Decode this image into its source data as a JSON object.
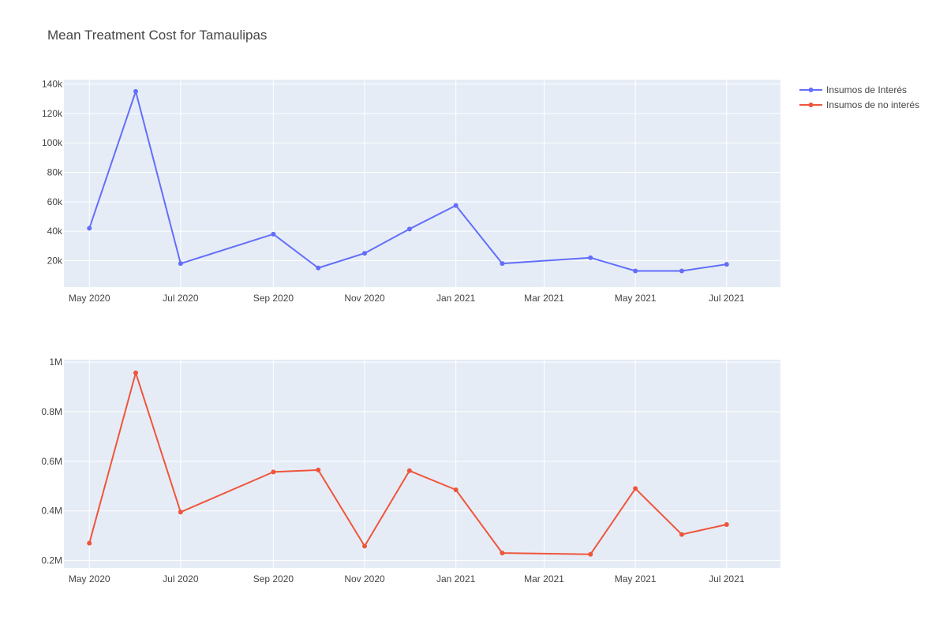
{
  "chart_data": {
    "type": "line",
    "title": "Mean Treatment Cost for Tamaulipas",
    "legend_position": "top-right",
    "grid": true,
    "x": [
      "2020-05-01",
      "2020-06-01",
      "2020-07-01",
      "2020-09-01",
      "2020-10-01",
      "2020-11-01",
      "2020-12-01",
      "2021-01-01",
      "2021-02-01",
      "2021-04-01",
      "2021-05-01",
      "2021-06-01",
      "2021-07-01"
    ],
    "x_tick_labels": [
      "May 2020",
      "Jul 2020",
      "Sep 2020",
      "Nov 2020",
      "Jan 2021",
      "Mar 2021",
      "May 2021",
      "Jul 2021"
    ],
    "x_tick_dates": [
      "2020-05-01",
      "2020-07-01",
      "2020-09-01",
      "2020-11-01",
      "2021-01-01",
      "2021-03-01",
      "2021-05-01",
      "2021-07-01"
    ],
    "x_range": [
      "2020-04-14",
      "2021-08-06"
    ],
    "colors": {
      "series_0": "#636efa",
      "series_1": "#ef553b",
      "plot_bg": "#e5ecf6"
    },
    "panels": [
      {
        "series": {
          "name": "Insumos de Interés",
          "values": [
            42000,
            135000,
            18000,
            38000,
            15000,
            25000,
            41500,
            57500,
            18000,
            22000,
            13000,
            13000,
            17500
          ]
        },
        "ylim": [
          2000,
          143000
        ],
        "y_ticks": [
          20000,
          40000,
          60000,
          80000,
          100000,
          120000,
          140000
        ],
        "y_tick_labels": [
          "20k",
          "40k",
          "60k",
          "80k",
          "100k",
          "120k",
          "140k"
        ]
      },
      {
        "series": {
          "name": "Insumos de no interés",
          "values": [
            270000,
            957000,
            395000,
            557000,
            565000,
            258000,
            562000,
            485000,
            230000,
            225000,
            490000,
            305000,
            345000
          ]
        },
        "ylim": [
          170000,
          1010000
        ],
        "y_ticks": [
          200000,
          400000,
          600000,
          800000,
          1000000
        ],
        "y_tick_labels": [
          "0.2M",
          "0.4M",
          "0.6M",
          "0.8M",
          "1M"
        ]
      }
    ]
  }
}
